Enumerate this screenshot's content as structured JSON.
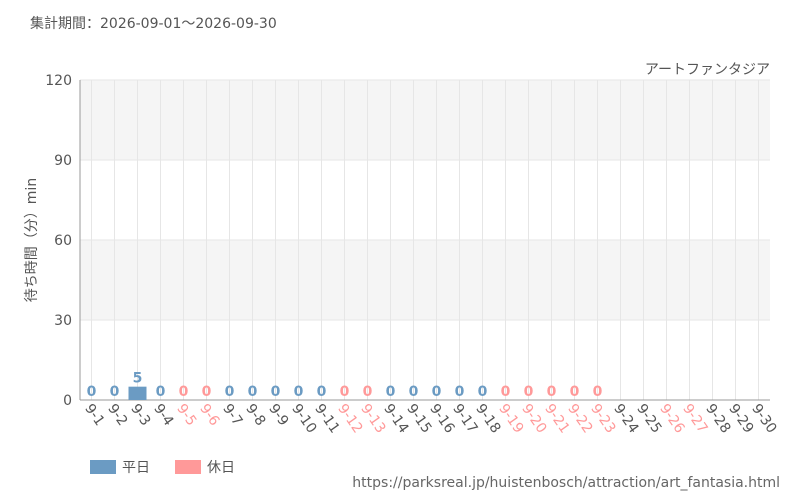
{
  "chart_data": {
    "type": "bar",
    "title": "集計期間：2026-09-01～2026-09-30",
    "subtitle": "アートファンタジア",
    "y_label": "待ち時間（分）min",
    "source": "https://parksreal.jp/huistenbosch/attraction/art_fantasia.html",
    "categories": [
      "9-1",
      "9-2",
      "9-3",
      "9-4",
      "9-5",
      "9-6",
      "9-7",
      "9-8",
      "9-9",
      "9-10",
      "9-11",
      "9-12",
      "9-13",
      "9-14",
      "9-15",
      "9-16",
      "9-17",
      "9-18",
      "9-19",
      "9-20",
      "9-21",
      "9-22",
      "9-23",
      "9-24",
      "9-25",
      "9-26",
      "9-27",
      "9-28",
      "9-29",
      "9-30"
    ],
    "category_label_colors": [
      "#555555",
      "#555555",
      "#555555",
      "#555555",
      "#ff9999",
      "#ff9999",
      "#555555",
      "#555555",
      "#555555",
      "#555555",
      "#555555",
      "#ff9999",
      "#ff9999",
      "#555555",
      "#555555",
      "#555555",
      "#555555",
      "#555555",
      "#ff9999",
      "#ff9999",
      "#ff9999",
      "#ff9999",
      "#ff9999",
      "#555555",
      "#555555",
      "#ff9999",
      "#ff9999",
      "#555555",
      "#555555",
      "#555555"
    ],
    "series": [
      {
        "name": "平日",
        "color": "#6b9bc3",
        "values": [
          0,
          0,
          5,
          0,
          null,
          null,
          0,
          0,
          0,
          0,
          0,
          null,
          null,
          0,
          0,
          0,
          0,
          0,
          null,
          null,
          null,
          null,
          null,
          null,
          null,
          null,
          null,
          null,
          null,
          null
        ]
      },
      {
        "name": "休日",
        "color": "#ff9999",
        "values": [
          null,
          null,
          null,
          null,
          0,
          0,
          null,
          null,
          null,
          null,
          null,
          0,
          0,
          null,
          null,
          null,
          null,
          null,
          0,
          0,
          0,
          0,
          0,
          null,
          null,
          null,
          null,
          null,
          null,
          null
        ]
      }
    ],
    "ylim": [
      0,
      120
    ],
    "yticks": [
      0,
      30,
      60,
      90,
      120
    ],
    "grid": true
  }
}
